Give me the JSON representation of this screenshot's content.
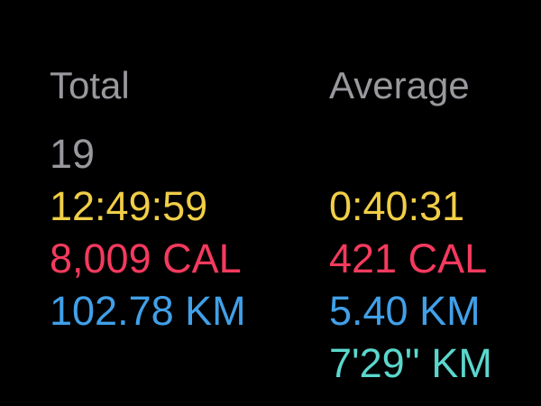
{
  "screen": {
    "name": "workout-summary"
  },
  "theme": {
    "background": "#000000",
    "header_gray": "#98989d",
    "count_gray": "#98989d",
    "duration_yellow": "#f0ce47",
    "calories_red": "#f43a5e",
    "distance_blue": "#41a0e8",
    "pace_teal": "#5bd7cd"
  },
  "summary": {
    "headers": {
      "total": "Total",
      "average": "Average"
    },
    "rows": [
      {
        "label": "workout-count",
        "total": "19",
        "average": "",
        "color": "#98989d"
      },
      {
        "label": "duration",
        "total": "12:49:59",
        "average": "0:40:31",
        "color": "#f0ce47"
      },
      {
        "label": "calories",
        "total": "8,009 CAL",
        "average": "421 CAL",
        "color": "#f43a5e"
      },
      {
        "label": "distance",
        "total": "102.78 KM",
        "average": "5.40 KM",
        "color": "#41a0e8"
      },
      {
        "label": "pace",
        "total": "",
        "average": "7'29'' KM",
        "color": "#5bd7cd"
      }
    ]
  }
}
